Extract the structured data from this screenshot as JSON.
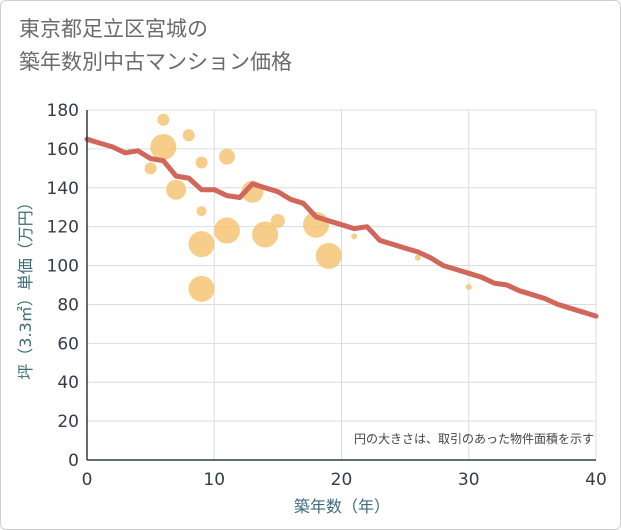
{
  "title": "東京都足立区宮城の\n築年数別中古マンション価格",
  "chart_data": {
    "type": "scatter",
    "title": "東京都足立区宮城の 築年数別中古マンション価格",
    "xlabel": "築年数（年）",
    "ylabel": "坪（3.3㎡）単価（万円）",
    "xlim": [
      0,
      40
    ],
    "ylim": [
      0,
      180
    ],
    "xticks": [
      0,
      10,
      20,
      30,
      40
    ],
    "yticks": [
      0,
      20,
      40,
      60,
      80,
      100,
      120,
      140,
      160,
      180
    ],
    "grid": true,
    "note": "円の大きさは、取引のあった物件面積を示す",
    "colors": {
      "bubble": "#f5c26b",
      "trend": "#d0675a",
      "grid": "#d9dde3"
    },
    "bubbles": [
      {
        "x": 6,
        "y": 175,
        "size": 6
      },
      {
        "x": 8,
        "y": 167,
        "size": 6
      },
      {
        "x": 6,
        "y": 161,
        "size": 13
      },
      {
        "x": 11,
        "y": 156,
        "size": 8
      },
      {
        "x": 9,
        "y": 153,
        "size": 6
      },
      {
        "x": 5,
        "y": 150,
        "size": 6
      },
      {
        "x": 7,
        "y": 139,
        "size": 10
      },
      {
        "x": 13,
        "y": 138,
        "size": 11
      },
      {
        "x": 9,
        "y": 128,
        "size": 5
      },
      {
        "x": 15,
        "y": 123,
        "size": 7
      },
      {
        "x": 18,
        "y": 121,
        "size": 13
      },
      {
        "x": 11,
        "y": 118,
        "size": 13
      },
      {
        "x": 14,
        "y": 116,
        "size": 13
      },
      {
        "x": 21,
        "y": 115,
        "size": 3
      },
      {
        "x": 9,
        "y": 111,
        "size": 13
      },
      {
        "x": 19,
        "y": 105,
        "size": 13
      },
      {
        "x": 26,
        "y": 104,
        "size": 3
      },
      {
        "x": 30,
        "y": 89,
        "size": 3
      },
      {
        "x": 9,
        "y": 88,
        "size": 13
      }
    ],
    "trend": [
      {
        "x": 0,
        "y": 165
      },
      {
        "x": 1,
        "y": 163
      },
      {
        "x": 2,
        "y": 161
      },
      {
        "x": 3,
        "y": 158
      },
      {
        "x": 4,
        "y": 159
      },
      {
        "x": 5,
        "y": 155
      },
      {
        "x": 6,
        "y": 154
      },
      {
        "x": 7,
        "y": 146
      },
      {
        "x": 8,
        "y": 145
      },
      {
        "x": 9,
        "y": 139
      },
      {
        "x": 10,
        "y": 139
      },
      {
        "x": 11,
        "y": 136
      },
      {
        "x": 12,
        "y": 135
      },
      {
        "x": 13,
        "y": 142
      },
      {
        "x": 14,
        "y": 140
      },
      {
        "x": 15,
        "y": 138
      },
      {
        "x": 16,
        "y": 134
      },
      {
        "x": 17,
        "y": 132
      },
      {
        "x": 18,
        "y": 125
      },
      {
        "x": 19,
        "y": 123
      },
      {
        "x": 20,
        "y": 121
      },
      {
        "x": 21,
        "y": 119
      },
      {
        "x": 22,
        "y": 120
      },
      {
        "x": 23,
        "y": 113
      },
      {
        "x": 24,
        "y": 111
      },
      {
        "x": 25,
        "y": 109
      },
      {
        "x": 26,
        "y": 107
      },
      {
        "x": 27,
        "y": 104
      },
      {
        "x": 28,
        "y": 100
      },
      {
        "x": 29,
        "y": 98
      },
      {
        "x": 30,
        "y": 96
      },
      {
        "x": 31,
        "y": 94
      },
      {
        "x": 32,
        "y": 91
      },
      {
        "x": 33,
        "y": 90
      },
      {
        "x": 34,
        "y": 87
      },
      {
        "x": 35,
        "y": 85
      },
      {
        "x": 36,
        "y": 83
      },
      {
        "x": 37,
        "y": 80
      },
      {
        "x": 38,
        "y": 78
      },
      {
        "x": 39,
        "y": 76
      },
      {
        "x": 40,
        "y": 74
      }
    ]
  }
}
